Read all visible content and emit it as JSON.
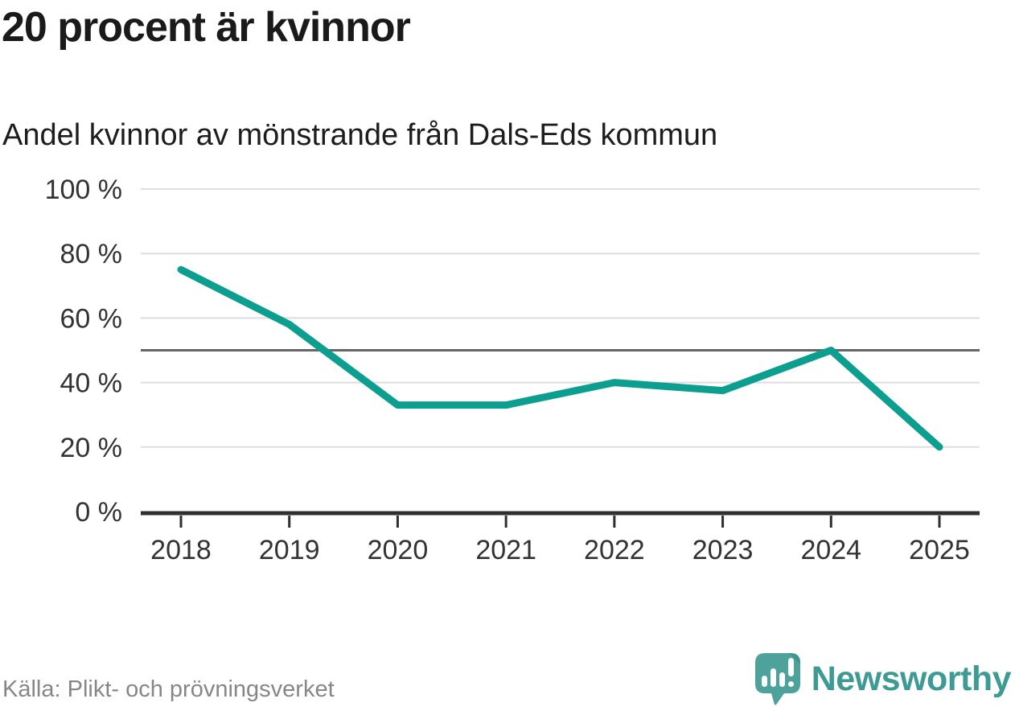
{
  "header": {
    "title": "20 procent är kvinnor",
    "subtitle": "Andel kvinnor av mönstrande från Dals-Eds kommun"
  },
  "footer": {
    "source": "Källa: Plikt- och prövningsverket",
    "brand": "Newsworthy"
  },
  "colors": {
    "line": "#0c9e8f",
    "grid": "#dedede",
    "reference_line": "#666666",
    "axis": "#2f2f2f",
    "tick_label": "#333333",
    "title_text": "#1a1a1a",
    "source_text": "#878787",
    "logo_bubble": "#4da29b",
    "logo_fold": "#3f948d",
    "wordmark": "#3e9b94"
  },
  "chart_data": {
    "type": "line",
    "title": "20 procent är kvinnor",
    "subtitle": "Andel kvinnor av mönstrande från Dals-Eds kommun",
    "categories": [
      "2018",
      "2019",
      "2020",
      "2021",
      "2022",
      "2023",
      "2024",
      "2025"
    ],
    "series": [
      {
        "name": "Andel kvinnor av mönstrande",
        "values": [
          75,
          58,
          33,
          33,
          40,
          37.5,
          50,
          20
        ]
      }
    ],
    "unit": "%",
    "ylim": [
      0,
      100
    ],
    "yticks": [
      0,
      20,
      40,
      60,
      80,
      100
    ],
    "ytick_suffix": " %",
    "reference_line": 50,
    "grid": "horizontal",
    "legend": "none",
    "source": "Källa: Plikt- och prövningsverket"
  }
}
